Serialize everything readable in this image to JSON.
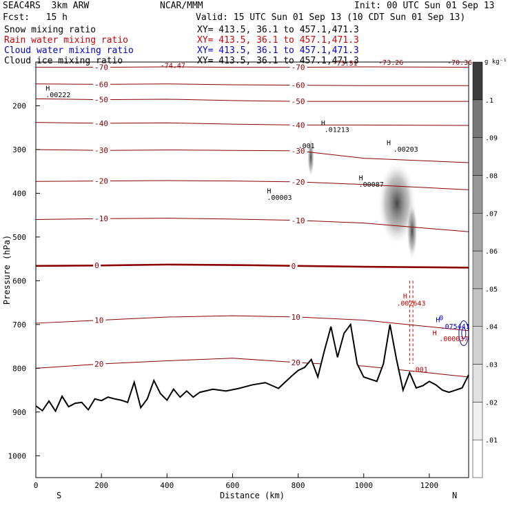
{
  "header": {
    "model": "SEAC4RS  3km ARW",
    "org": "NCAR/MMM",
    "init": "Init: 00 UTC Sun 01 Sep 13",
    "fcst": "Fcst:   15 h",
    "valid": "Valid: 15 UTC Sun 01 Sep 13 (10 CDT Sun 01 Sep 13)"
  },
  "fields": [
    {
      "name": "Snow mixing ratio",
      "xy": "XY= 413.5, 36.1 to 457.1,471.3",
      "color": "#000000"
    },
    {
      "name": "Rain water mixing ratio",
      "xy": "XY= 413.5, 36.1 to 457.1,471.3",
      "color": "#cc0000"
    },
    {
      "name": "Cloud water mixing ratio",
      "xy": "XY= 413.5, 36.1 to 457.1,471.3",
      "color": "#0000cc"
    },
    {
      "name": "Cloud ice mixing ratio",
      "xy": "XY= 413.5, 36.1 to 457.1,471.3",
      "color": "#000000"
    }
  ],
  "chart_data": {
    "type": "cross-section",
    "xlabel": "Distance (km)",
    "ylabel": "Pressure (hPa)",
    "xlim": [
      0,
      1320
    ],
    "ylim": [
      1050,
      100
    ],
    "x_ticks": [
      0,
      200,
      400,
      600,
      800,
      1000,
      1200
    ],
    "y_ticks": [
      200,
      300,
      400,
      500,
      600,
      700,
      800,
      900,
      1000
    ],
    "x_end_labels": {
      "left": "S",
      "right": "N"
    },
    "colorbar": {
      "unit": "g kg⁻¹",
      "labels": [
        ".01",
        ".02",
        ".03",
        ".04",
        ".05",
        ".06",
        ".07",
        ".08",
        ".09",
        ".1"
      ],
      "colors": [
        "#ffffff",
        "#f0f0f0",
        "#e1e1e1",
        "#d2d2d2",
        "#c3c3c3",
        "#b4b4b4",
        "#a5a5a5",
        "#969696",
        "#878787",
        "#787878",
        "#3c3c3c"
      ]
    },
    "temperature_isotherms": [
      {
        "label": "-70",
        "y": [
          112,
          112,
          111,
          112,
          112,
          111,
          112
        ]
      },
      {
        "label": "-60",
        "y": [
          150,
          151,
          150,
          152,
          153,
          154,
          154
        ]
      },
      {
        "label": "-50",
        "y": [
          184,
          186,
          185,
          188,
          190,
          190,
          190
        ]
      },
      {
        "label": "-40",
        "y": [
          238,
          240,
          239,
          242,
          244,
          244,
          245
        ]
      },
      {
        "label": "-30",
        "y": [
          300,
          302,
          301,
          302,
          303,
          320,
          330
        ]
      },
      {
        "label": "-20",
        "y": [
          373,
          372,
          371,
          372,
          374,
          380,
          392
        ]
      },
      {
        "label": "-10",
        "y": [
          460,
          458,
          457,
          459,
          462,
          468,
          488
        ]
      },
      {
        "label": "0",
        "y": [
          566,
          565,
          563,
          564,
          566,
          568,
          570
        ]
      },
      {
        "label": "10",
        "y": [
          697,
          690,
          683,
          680,
          683,
          690,
          714
        ]
      },
      {
        "label": "20",
        "y": [
          800,
          790,
          783,
          777,
          787,
          795,
          820
        ]
      }
    ],
    "isotherm_x": [
      0,
      200,
      400,
      600,
      800,
      1000,
      1320
    ],
    "annotations": [
      {
        "text": "-74.47",
        "x": 380,
        "p": 113,
        "color": "#8b0000"
      },
      {
        "text": "-73.51",
        "x": 905,
        "p": 108,
        "color": "#8b0000"
      },
      {
        "text": "-73.26",
        "x": 1045,
        "p": 106,
        "color": "#8b0000"
      },
      {
        "text": "-70.36",
        "x": 1255,
        "p": 106,
        "color": "#8b0000"
      },
      {
        "text": "H",
        "x": 30,
        "p": 165,
        "color": "#000000"
      },
      {
        "text": ".00222",
        "x": 30,
        "p": 180,
        "color": "#000000"
      },
      {
        "text": "H",
        "x": 870,
        "p": 245,
        "color": "#000000"
      },
      {
        "text": ".01213",
        "x": 880,
        "p": 260,
        "color": "#000000"
      },
      {
        "text": ".001",
        "x": 800,
        "p": 297,
        "color": "#000000"
      },
      {
        "text": "H",
        "x": 1070,
        "p": 290,
        "color": "#000000"
      },
      {
        "text": ".00203",
        "x": 1090,
        "p": 305,
        "color": "#000000"
      },
      {
        "text": "H",
        "x": 985,
        "p": 370,
        "color": "#000000"
      },
      {
        "text": ".00087",
        "x": 985,
        "p": 385,
        "color": "#000000"
      },
      {
        "text": "H",
        "x": 705,
        "p": 400,
        "color": "#000000"
      },
      {
        "text": ".00003",
        "x": 705,
        "p": 415,
        "color": "#000000"
      },
      {
        "text": "H",
        "x": 1120,
        "p": 640,
        "color": "#cc0000"
      },
      {
        "text": ".002643",
        "x": 1100,
        "p": 657,
        "color": "#cc0000"
      },
      {
        "text": ".001",
        "x": 1145,
        "p": 808,
        "color": "#cc0000"
      },
      {
        "text": "H",
        "x": 1220,
        "p": 695,
        "color": "#0000cc"
      },
      {
        "text": ".075441",
        "x": 1235,
        "p": 710,
        "color": "#0000cc"
      },
      {
        "text": "H",
        "x": 1210,
        "p": 725,
        "color": "#cc0000"
      },
      {
        "text": ".000037",
        "x": 1230,
        "p": 738,
        "color": "#cc0000"
      },
      {
        "text": "0",
        "x": 1230,
        "p": 690,
        "color": "#0000cc"
      }
    ],
    "terrain": {
      "x": [
        0,
        20,
        40,
        60,
        80,
        100,
        120,
        140,
        160,
        180,
        200,
        220,
        240,
        260,
        280,
        300,
        320,
        340,
        360,
        380,
        400,
        420,
        440,
        460,
        480,
        500,
        540,
        580,
        620,
        660,
        700,
        740,
        780,
        800,
        820,
        840,
        860,
        880,
        900,
        920,
        940,
        960,
        980,
        1000,
        1020,
        1040,
        1060,
        1080,
        1100,
        1120,
        1140,
        1160,
        1180,
        1200,
        1220,
        1240,
        1260,
        1280,
        1300,
        1320
      ],
      "p": [
        886,
        897,
        875,
        898,
        864,
        888,
        880,
        878,
        895,
        870,
        874,
        866,
        870,
        873,
        878,
        832,
        890,
        870,
        828,
        858,
        873,
        848,
        866,
        852,
        866,
        855,
        848,
        852,
        846,
        838,
        833,
        846,
        818,
        805,
        798,
        780,
        820,
        760,
        705,
        775,
        720,
        700,
        790,
        820,
        825,
        830,
        790,
        700,
        780,
        850,
        810,
        845,
        840,
        830,
        838,
        850,
        855,
        850,
        845,
        815
      ]
    }
  }
}
